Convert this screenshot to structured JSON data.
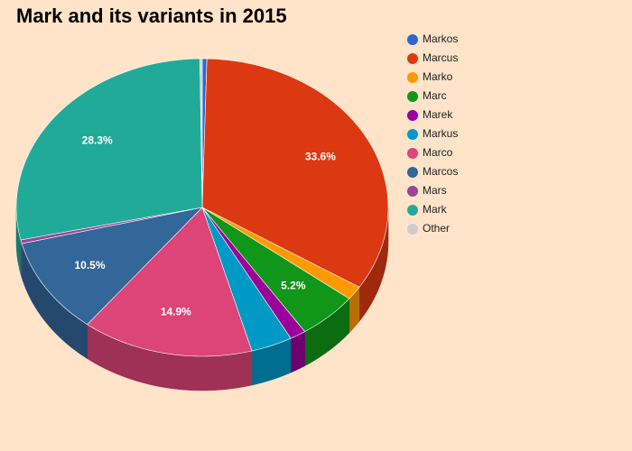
{
  "chart_data": {
    "type": "pie3d",
    "title": "Mark and its variants in 2015",
    "categories": [
      "Markos",
      "Marcus",
      "Marko",
      "Marc",
      "Marek",
      "Markus",
      "Marco",
      "Marcos",
      "Mars",
      "Mark",
      "Other"
    ],
    "values": [
      0.4,
      33.6,
      1.5,
      5.2,
      1.4,
      3.6,
      14.9,
      10.5,
      0.4,
      28.3,
      0.2
    ],
    "value_labels": [
      null,
      "33.6%",
      null,
      "5.2%",
      null,
      null,
      "14.9%",
      "10.5%",
      null,
      "28.3%",
      null
    ],
    "colors": [
      "#3366cc",
      "#dc3912",
      "#ff9900",
      "#109618",
      "#990099",
      "#0099c6",
      "#dd4477",
      "#336699",
      "#994499",
      "#22aa99",
      "#cccccc"
    ],
    "legend": "right"
  }
}
